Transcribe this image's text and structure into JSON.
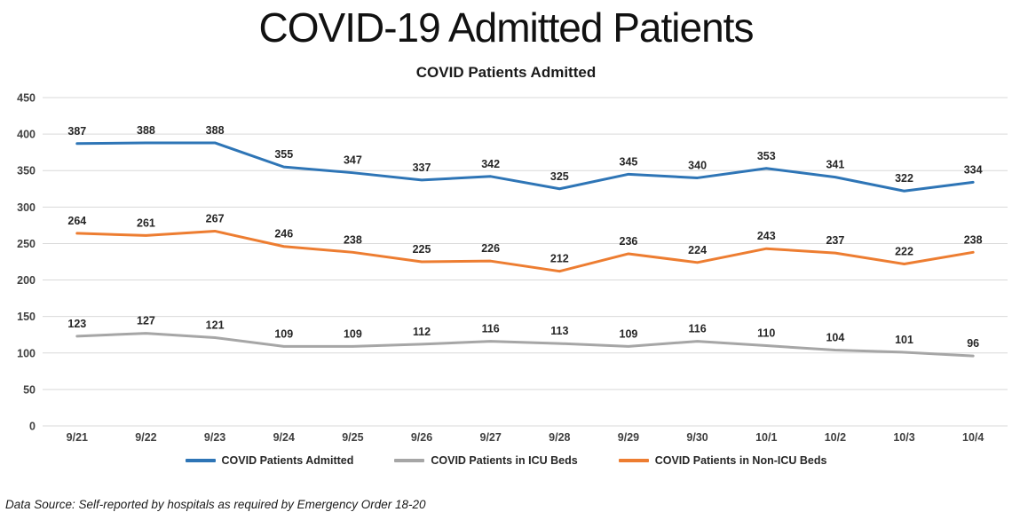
{
  "page": {
    "title": "COVID-19 Admitted Patients",
    "footer_note": "Data Source: Self-reported by hospitals as required by Emergency Order 18-20"
  },
  "chart_data": {
    "type": "line",
    "title": "COVID Patients Admitted",
    "categories": [
      "9/21",
      "9/22",
      "9/23",
      "9/24",
      "9/25",
      "9/26",
      "9/27",
      "9/28",
      "9/29",
      "9/30",
      "10/1",
      "10/2",
      "10/3",
      "10/4"
    ],
    "series": [
      {
        "name": "COVID Patients Admitted",
        "color": "#2E75B6",
        "values": [
          387,
          388,
          388,
          355,
          347,
          337,
          342,
          325,
          345,
          340,
          353,
          341,
          322,
          334
        ]
      },
      {
        "name": "COVID Patients in ICU Beds",
        "color": "#A6A6A6",
        "values": [
          123,
          127,
          121,
          109,
          109,
          112,
          116,
          113,
          109,
          116,
          110,
          104,
          101,
          96
        ]
      },
      {
        "name": "COVID Patients in Non-ICU Beds",
        "color": "#ED7D31",
        "values": [
          264,
          261,
          267,
          246,
          238,
          225,
          226,
          212,
          236,
          224,
          243,
          237,
          222,
          238
        ]
      }
    ],
    "ylim": [
      0,
      450
    ],
    "ytick_step": 50,
    "grid": true,
    "data_labels": true,
    "legend_position": "bottom",
    "colors": {
      "gridline": "#D9D9D9",
      "axis_label": "#404040",
      "data_label": "#262626"
    }
  }
}
